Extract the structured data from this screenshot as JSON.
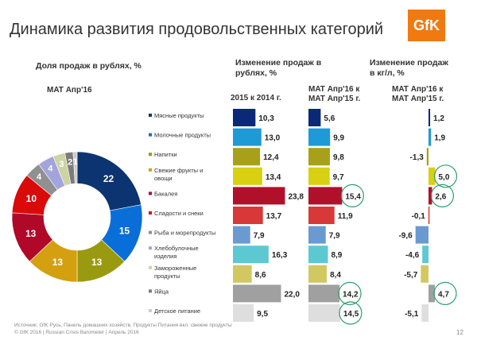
{
  "title": "Динамика развития продовольственных категорий",
  "logo_text": "GfK",
  "logo_color": "#f07a10",
  "left_header": "Доля продаж в рублях, %",
  "left_period": "MAT  Апр'16",
  "mid_header": [
    "Изменение  продаж в",
    "рублях, %"
  ],
  "col1_header": "2015 к 2014 г.",
  "col2_header": [
    "MAT  Апр'16  к",
    "MAT  Апр'15  г."
  ],
  "right_header": [
    "Изменение  продаж",
    "в кг/л, %"
  ],
  "col3_header": [
    "MAT  Апр'16  к",
    "MAT  Апр'15  г."
  ],
  "footer": {
    "source": "Источник: GfK Русь, Панель домашних хозяйств, Продукты Питания вкл. свежие продукты",
    "copyright": "© GfK 2016 | Russian Crisis Barometer | Апрель 2016",
    "page": "12"
  },
  "chart_data": [
    {
      "type": "pie",
      "subtype": "donut",
      "title": "Доля продаж в рублях, %",
      "categories": [
        "Мясные продукты",
        "Молочные продукты",
        "Напитки",
        "Свежие фрукты и овощи",
        "Бакалея",
        "Сладости и снеки",
        "Рыба и морепродукты",
        "Хлебобулочные изделия",
        "Замороженные продукты",
        "Яйца",
        "Детское питание"
      ],
      "values": [
        22,
        15,
        13,
        13,
        13,
        10,
        4,
        4,
        3,
        2,
        1
      ],
      "colors": [
        "#0b3470",
        "#0a6ed8",
        "#9a9a10",
        "#d4a010",
        "#b00828",
        "#d80a0a",
        "#909090",
        "#a4a4dc",
        "#ccd4a4",
        "#7c7c7c",
        "#cccccc"
      ],
      "legend_placement": "right"
    },
    {
      "type": "bar",
      "orientation": "horizontal",
      "title": "2015 к 2014 г.",
      "categories": [
        "Мясные продукты",
        "Молочные продукты",
        "Напитки",
        "Свежие фрукты и овощи",
        "Бакалея",
        "Сладости и снеки",
        "Рыба и морепродукты",
        "Хлебобулочные изделия",
        "Замороженные продукты",
        "Яйца",
        "Детское питание"
      ],
      "values": [
        10.3,
        13.0,
        12.4,
        13.4,
        23.8,
        13.7,
        7.9,
        16.3,
        8.6,
        22.0,
        9.5
      ],
      "labels": [
        "10,3",
        "13,0",
        "12,4",
        "13,4",
        "23,8",
        "13,7",
        "7,9",
        "16,3",
        "8,6",
        "22,0",
        "9,5"
      ],
      "highlighted": [
        false,
        false,
        false,
        false,
        false,
        false,
        false,
        false,
        false,
        false,
        false
      ],
      "colors": [
        "#0a2a78",
        "#1e9ad6",
        "#a8a018",
        "#d8d010",
        "#b0102a",
        "#d83838",
        "#6a9ad0",
        "#5cc8d2",
        "#d2c862",
        "#a0a0a0",
        "#dedede"
      ]
    },
    {
      "type": "bar",
      "orientation": "horizontal",
      "title": "MAT Апр'16 к MAT Апр'15 г.",
      "categories": [
        "Мясные продукты",
        "Молочные продукты",
        "Напитки",
        "Свежие фрукты и овощи",
        "Бакалея",
        "Сладости и снеки",
        "Рыба и морепродукты",
        "Хлебобулочные изделия",
        "Замороженные продукты",
        "Яйца",
        "Детское питание"
      ],
      "values": [
        5.6,
        9.9,
        9.8,
        9.7,
        15.4,
        11.9,
        7.9,
        8.9,
        8.4,
        14.2,
        14.5
      ],
      "labels": [
        "5,6",
        "9,9",
        "9,8",
        "9,7",
        "15,4",
        "11,9",
        "7,9",
        "8,9",
        "8,4",
        "14,2",
        "14,5"
      ],
      "highlighted": [
        false,
        false,
        false,
        false,
        true,
        false,
        false,
        false,
        false,
        true,
        true
      ],
      "colors": [
        "#0a2a78",
        "#1e9ad6",
        "#a8a018",
        "#d8d010",
        "#b0102a",
        "#d83838",
        "#6a9ad0",
        "#5cc8d2",
        "#d2c862",
        "#a0a0a0",
        "#dedede"
      ]
    },
    {
      "type": "bar",
      "orientation": "horizontal",
      "title": "Изменение продаж в кг/л, % — MAT Апр'16 к MAT Апр'15 г.",
      "categories": [
        "Мясные продукты",
        "Молочные продукты",
        "Напитки",
        "Свежие фрукты и овощи",
        "Бакалея",
        "Сладости и снеки",
        "Рыба и морепродукты",
        "Хлебобулочные изделия",
        "Замороженные продукты",
        "Яйца",
        "Детское питание"
      ],
      "values": [
        1.2,
        1.9,
        -1.3,
        5.0,
        2.6,
        -0.1,
        -9.6,
        -4.6,
        -5.7,
        4.7,
        -5.1
      ],
      "labels": [
        "1,2",
        "1,9",
        "-1,3",
        "5,0",
        "2,6",
        "-0,1",
        "-9,6",
        "-4,6",
        "-5,7",
        "4,7",
        "-5,1"
      ],
      "highlighted": [
        false,
        false,
        false,
        true,
        true,
        false,
        false,
        false,
        false,
        true,
        false
      ],
      "colors": [
        "#0a2a78",
        "#1e9ad6",
        "#a8a018",
        "#d8d010",
        "#b0102a",
        "#d83838",
        "#6a9ad0",
        "#5cc8d2",
        "#d2c862",
        "#a0a0a0",
        "#dedede"
      ]
    }
  ],
  "legend": [
    [
      "Мясные продукты"
    ],
    [
      "Молочные продукты"
    ],
    [
      "Напитки"
    ],
    [
      "Свежие фрукты и",
      "овощи"
    ],
    [
      "Бакалея"
    ],
    [
      "Сладости и снеки"
    ],
    [
      "Рыба и морепродукты"
    ],
    [
      "Хлебобулочные",
      "изделия"
    ],
    [
      "Замороженные",
      "продукты"
    ],
    [
      "Яйца"
    ],
    [
      "Детское питание"
    ]
  ],
  "highlight_color": "#2aa070"
}
